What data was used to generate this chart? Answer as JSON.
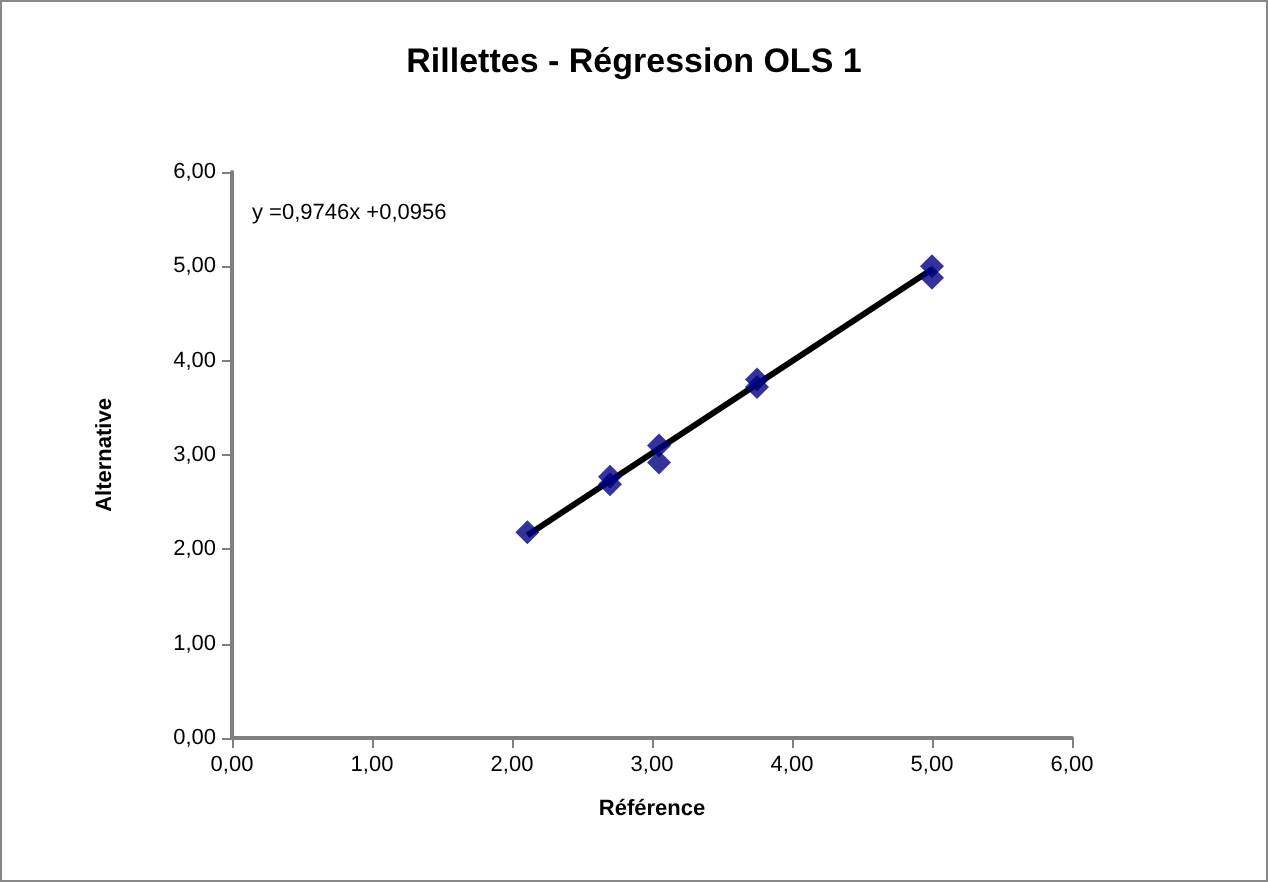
{
  "chart_data": {
    "type": "scatter",
    "title": "Rillettes - Régression OLS 1",
    "xlabel": "Référence",
    "ylabel": "Alternative",
    "annotations": [
      "y =0,9746x +0,0956"
    ],
    "series": [
      {
        "color": "#000080",
        "x": [
          2.11,
          2.7,
          2.7,
          3.05,
          3.05,
          3.75,
          3.75,
          5.0,
          5.0
        ],
        "values": [
          2.18,
          2.77,
          2.69,
          3.1,
          2.92,
          3.8,
          3.72,
          5.0,
          4.88
        ],
        "marker": "diamond"
      },
      {
        "type": "line",
        "color": "#000000",
        "x": [
          2.11,
          5.0
        ],
        "values": [
          2.15,
          4.97
        ],
        "marker": "none"
      }
    ],
    "xlim": [
      0,
      6
    ],
    "xticks": [
      {
        "value": 0,
        "label": "0,00"
      },
      {
        "value": 1,
        "label": "1,00"
      },
      {
        "value": 2,
        "label": "2,00"
      },
      {
        "value": 3,
        "label": "3,00"
      },
      {
        "value": 4,
        "label": "4,00"
      },
      {
        "value": 5,
        "label": "5,00"
      },
      {
        "value": 6,
        "label": "6,00"
      }
    ],
    "ylim": [
      0,
      6
    ],
    "yticks": [
      {
        "value": 0,
        "label": "0,00"
      },
      {
        "value": 1,
        "label": "1,00"
      },
      {
        "value": 2,
        "label": "2,00"
      },
      {
        "value": 3,
        "label": "3,00"
      },
      {
        "value": 4,
        "label": "4,00"
      },
      {
        "value": 5,
        "label": "5,00"
      },
      {
        "value": 6,
        "label": "6,00"
      }
    ],
    "grid": false
  }
}
